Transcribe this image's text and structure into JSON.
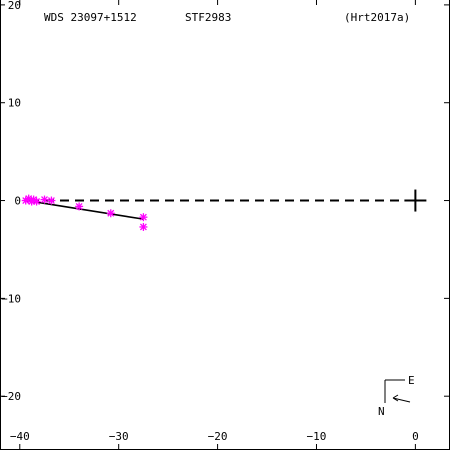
{
  "header": {
    "wds": "WDS 23097+1512",
    "discoverer": "STF2983",
    "reference": "(Hrt2017a)"
  },
  "compass": {
    "east": "E",
    "north": "N"
  },
  "chart_data": {
    "type": "scatter",
    "xlim": [
      -42,
      3.5
    ],
    "ylim": [
      -25.5,
      20.5
    ],
    "x_ticks": [
      -40,
      -30,
      -20,
      -10,
      0
    ],
    "x_tick_labels": [
      "−40",
      "−30",
      "−20",
      "−10",
      "0"
    ],
    "y_ticks": [
      20,
      10,
      0,
      -10,
      -20
    ],
    "y_tick_labels": [
      "20",
      "10",
      "0",
      "−10",
      "−20"
    ],
    "primary": [
      0,
      0
    ],
    "observations": [
      [
        -39.4,
        0.0
      ],
      [
        -39.1,
        0.2
      ],
      [
        -38.8,
        -0.1
      ],
      [
        -38.6,
        0.1
      ],
      [
        -38.3,
        -0.1
      ],
      [
        -37.5,
        0.1
      ],
      [
        -36.8,
        0.0
      ],
      [
        -34.0,
        -0.6
      ],
      [
        -30.8,
        -1.3
      ],
      [
        -27.5,
        -1.7
      ],
      [
        -27.5,
        -2.7
      ]
    ],
    "fit_line": [
      [
        -39.3,
        0.0
      ],
      [
        -27.5,
        -1.9
      ]
    ],
    "reference_line_y": 0,
    "colors": {
      "observation": "#ff00ff",
      "line": "#000000",
      "axis": "#000000"
    }
  }
}
